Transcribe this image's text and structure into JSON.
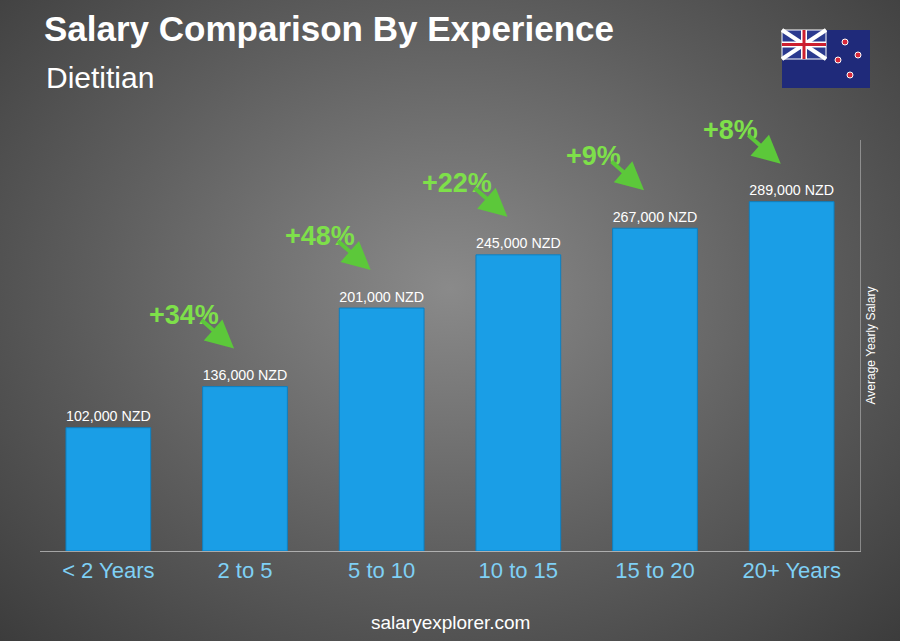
{
  "chart_data": {
    "type": "bar",
    "title": "Salary Comparison By Experience",
    "subtitle": "Dietitian",
    "y_label": "Average Yearly Salary",
    "categories": [
      "< 2 Years",
      "2 to 5",
      "5 to 10",
      "10 to 15",
      "15 to 20",
      "20+ Years"
    ],
    "values": [
      102000,
      136000,
      201000,
      245000,
      267000,
      289000
    ],
    "value_labels": [
      "102,000 NZD",
      "136,000 NZD",
      "201,000 NZD",
      "245,000 NZD",
      "267,000 NZD",
      "289,000 NZD"
    ],
    "data_labels": true,
    "color": "#1a9ee6",
    "ylim": [
      0,
      340000
    ],
    "tick_labels": "x",
    "grid": false,
    "annotations": [
      "+34%",
      "+48%",
      "+22%",
      "+9%",
      "+8%"
    ],
    "source": "salaryexplorer.com"
  }
}
